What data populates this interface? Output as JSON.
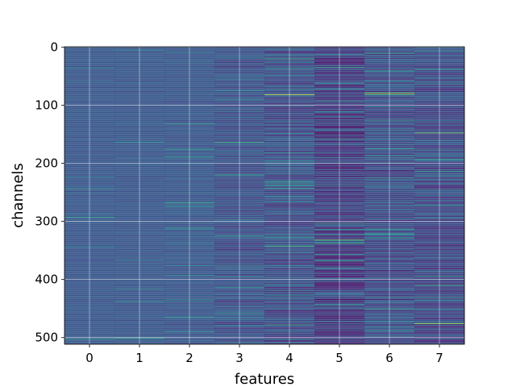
{
  "chart_data": {
    "type": "heatmap",
    "title": "",
    "xlabel": "features",
    "ylabel": "channels",
    "x_ticks": [
      0,
      1,
      2,
      3,
      4,
      5,
      6,
      7
    ],
    "y_ticks": [
      0,
      100,
      200,
      300,
      400,
      500
    ],
    "xlim": [
      -0.5,
      7.5
    ],
    "ylim": [
      511.5,
      -0.5
    ],
    "n_rows": 512,
    "n_cols": 8,
    "colormap": "viridis",
    "grid": true,
    "column_variability": [
      0.1,
      0.12,
      0.16,
      0.28,
      0.42,
      0.48,
      0.44,
      0.4
    ],
    "column_base": [
      0.27,
      0.27,
      0.27,
      0.25,
      0.24,
      0.18,
      0.24,
      0.22
    ],
    "highlights": [
      {
        "feature": 4,
        "channel": 82,
        "value": 0.95
      },
      {
        "feature": 6,
        "channel": 80,
        "value": 0.92
      },
      {
        "feature": 7,
        "channel": 148,
        "value": 0.8
      },
      {
        "feature": 7,
        "channel": 476,
        "value": 0.88
      },
      {
        "feature": 5,
        "channel": 138,
        "value": 0.0
      },
      {
        "feature": 5,
        "channel": 332,
        "value": 0.75
      },
      {
        "feature": 4,
        "channel": 505,
        "value": 0.05
      }
    ],
    "colors": {
      "viridis_dark": "#440154",
      "viridis_mid": "#3b528b",
      "viridis_teal": "#21918c",
      "viridis_green": "#5ec962",
      "viridis_yellow": "#fde725",
      "grid": "#ffffff"
    }
  }
}
